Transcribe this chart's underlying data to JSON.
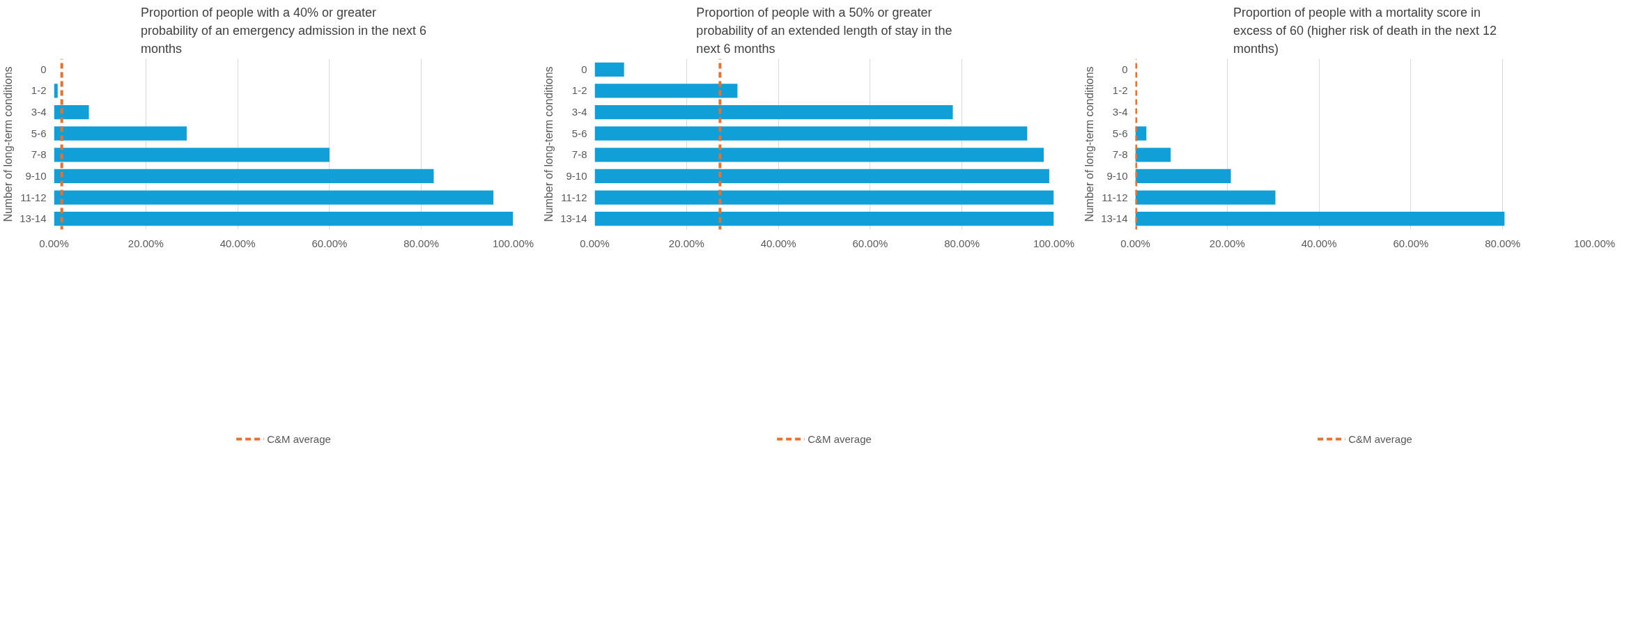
{
  "chart_data": [
    {
      "type": "bar",
      "orientation": "horizontal",
      "title": "Proportion of people with a 40% or greater probability of an emergency admission in the next 6 months",
      "ylabel": "Number of long-term conditions",
      "categories": [
        "0",
        "1-2",
        "3-4",
        "5-6",
        "7-8",
        "9-10",
        "11-12",
        "13-14"
      ],
      "series": [
        {
          "color": "#109fd6",
          "values": [
            0,
            0.8,
            7.6,
            28.9,
            60,
            82.7,
            95.7,
            100
          ]
        }
      ],
      "xlim": [
        0,
        100
      ],
      "xticks": [
        {
          "value": 0,
          "label": "0.00%"
        },
        {
          "value": 20,
          "label": "20.00%"
        },
        {
          "value": 40,
          "label": "40.00%"
        },
        {
          "value": 60,
          "label": "60.00%"
        },
        {
          "value": 80,
          "label": "80.00%"
        },
        {
          "value": 100,
          "label": "100.00%"
        }
      ],
      "ref_lines": [
        {
          "axis": "x",
          "value": 1.7,
          "label": "C&M average",
          "color": "#e8712e",
          "line_style": "dashed"
        }
      ],
      "grid": "x",
      "legend": "bottom"
    },
    {
      "type": "bar",
      "orientation": "horizontal",
      "title": "Proportion of people with a 50% or greater probability of an extended length of stay in the next 6 months",
      "ylabel": "Number of long-term conditions",
      "categories": [
        "0",
        "1-2",
        "3-4",
        "5-6",
        "7-8",
        "9-10",
        "11-12",
        "13-14"
      ],
      "series": [
        {
          "color": "#109fd6",
          "values": [
            6.4,
            31.1,
            78,
            94.2,
            97.8,
            99,
            100,
            100
          ]
        }
      ],
      "xlim": [
        0,
        100
      ],
      "xticks": [
        {
          "value": 0,
          "label": "0.00%"
        },
        {
          "value": 20,
          "label": "20.00%"
        },
        {
          "value": 40,
          "label": "40.00%"
        },
        {
          "value": 60,
          "label": "60.00%"
        },
        {
          "value": 80,
          "label": "80.00%"
        },
        {
          "value": 100,
          "label": "100.00%"
        }
      ],
      "ref_lines": [
        {
          "axis": "x",
          "value": 27.3,
          "label": "C&M average",
          "color": "#e8712e",
          "line_style": "dashed"
        }
      ],
      "grid": "x",
      "legend": "bottom"
    },
    {
      "type": "bar",
      "orientation": "horizontal",
      "title": "Proportion of people with a mortality score in excess of 60 (higher risk of death in the next 12 months)",
      "ylabel": "Number of long-term conditions",
      "categories": [
        "0",
        "1-2",
        "3-4",
        "5-6",
        "7-8",
        "9-10",
        "11-12",
        "13-14"
      ],
      "series": [
        {
          "color": "#109fd6",
          "values": [
            0,
            0,
            null,
            2.4,
            7.7,
            20.8,
            30.5,
            80.4
          ]
        }
      ],
      "xlim": [
        0,
        100
      ],
      "xticks": [
        {
          "value": 0,
          "label": "0.00%"
        },
        {
          "value": 20,
          "label": "20.00%"
        },
        {
          "value": 40,
          "label": "40.00%"
        },
        {
          "value": 60,
          "label": "60.00%"
        },
        {
          "value": 80,
          "label": "80.00%"
        },
        {
          "value": 100,
          "label": "100.00%"
        }
      ],
      "ref_lines": [
        {
          "axis": "x",
          "value": 0.1,
          "label": "C&M average",
          "color": "#e8712e",
          "line_style": "dashed"
        }
      ],
      "grid": "x",
      "legend": "bottom"
    }
  ]
}
